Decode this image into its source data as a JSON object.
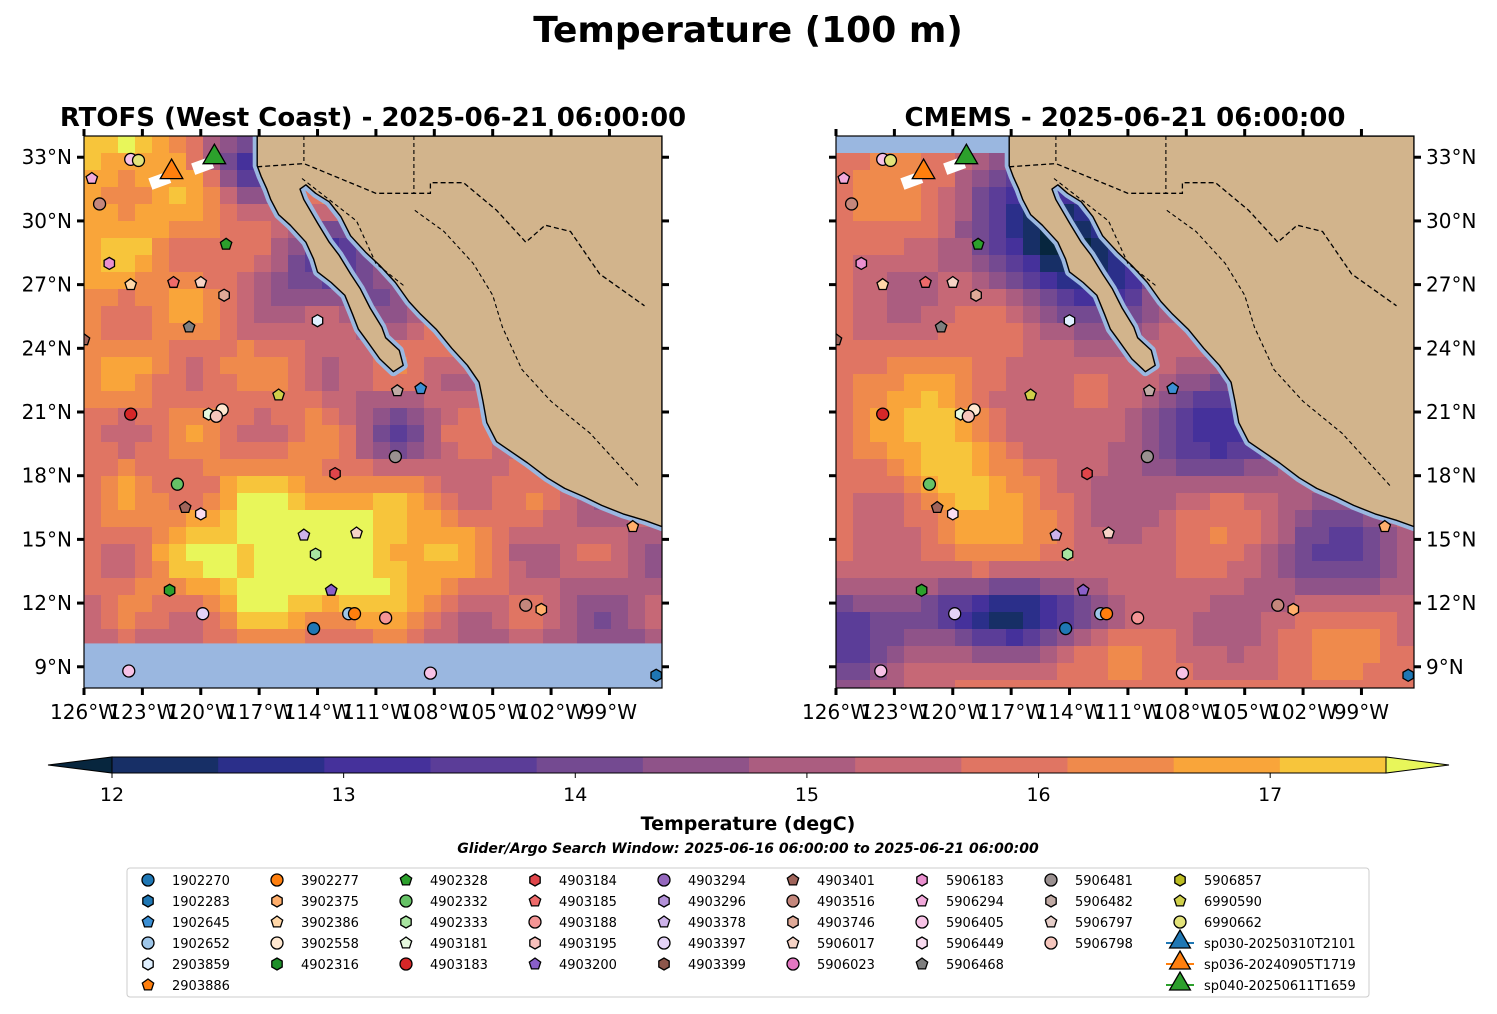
{
  "figure": {
    "title": "Temperature (100 m)",
    "search_window": "Glider/Argo Search Window: 2025-06-16 06:00:00 to 2025-06-21 06:00:00"
  },
  "chart_data": [
    {
      "type": "heatmap",
      "title": "RTOFS (West Coast) - 2025-06-21 06:00:00",
      "model": "RTOFS",
      "lon_range": [
        -126,
        -96.3
      ],
      "lat_range": [
        8,
        34
      ],
      "x_ticks": [
        "126°W",
        "123°W",
        "120°W",
        "117°W",
        "114°W",
        "111°W",
        "108°W",
        "105°W",
        "102°W",
        "99°W"
      ],
      "y_ticks": [
        "9°N",
        "12°N",
        "15°N",
        "18°N",
        "21°N",
        "24°N",
        "27°N",
        "30°N",
        "33°N"
      ],
      "y_tick_side": "left",
      "no_data_below_lat": 10.1
    },
    {
      "type": "heatmap",
      "title": "CMEMS - 2025-06-21 06:00:00",
      "model": "CMEMS",
      "lon_range": [
        -126,
        -96.3
      ],
      "lat_range": [
        8,
        34
      ],
      "x_ticks": [
        "126°W",
        "123°W",
        "120°W",
        "117°W",
        "114°W",
        "111°W",
        "108°W",
        "105°W",
        "102°W",
        "99°W"
      ],
      "y_ticks": [
        "9°N",
        "12°N",
        "15°N",
        "18°N",
        "21°N",
        "24°N",
        "27°N",
        "30°N",
        "33°N"
      ],
      "y_tick_side": "right",
      "no_data_above_lat": 33.2
    }
  ],
  "colorbar": {
    "label": "Temperature (degC)",
    "min": 12,
    "max": 17.5,
    "step": 0.5,
    "ticks": [
      "12",
      "13",
      "14",
      "15",
      "16",
      "17"
    ],
    "extend": "both",
    "colors": [
      "#07263e",
      "#172f66",
      "#2b2f8a",
      "#45319b",
      "#5b3d98",
      "#744a91",
      "#8f5389",
      "#ab5d80",
      "#c66876",
      "#e07563",
      "#ef8a4c",
      "#f9a53a",
      "#f7c53b",
      "#e8f65a"
    ]
  },
  "map_colors": {
    "land": "#d2b48c",
    "no_data": "#9ab7e0",
    "shelf": "#9ab7e0"
  },
  "floats": [
    {
      "id": "1902270",
      "marker": "circle",
      "color": "#1f77b4"
    },
    {
      "id": "1902283",
      "marker": "hexagon",
      "color": "#1f77b4"
    },
    {
      "id": "1902645",
      "marker": "pentagon",
      "color": "#3b8fd4"
    },
    {
      "id": "1902652",
      "marker": "circle",
      "color": "#9ec6e9"
    },
    {
      "id": "2903859",
      "marker": "hexagon",
      "color": "#e0f0ff"
    },
    {
      "id": "2903886",
      "marker": "pentagon",
      "color": "#ff7f0e"
    },
    {
      "id": "3902277",
      "marker": "circle",
      "color": "#ff7f0e"
    },
    {
      "id": "3902375",
      "marker": "hexagon",
      "color": "#ffae6b"
    },
    {
      "id": "3902386",
      "marker": "pentagon",
      "color": "#ffd7a8"
    },
    {
      "id": "3902558",
      "marker": "circle",
      "color": "#ffe8d1"
    },
    {
      "id": "4902316",
      "marker": "hexagon",
      "color": "#1e8f2a"
    },
    {
      "id": "4902328",
      "marker": "pentagon",
      "color": "#2ca02c"
    },
    {
      "id": "4902332",
      "marker": "circle",
      "color": "#66c266"
    },
    {
      "id": "4902333",
      "marker": "hexagon",
      "color": "#a8e4a0"
    },
    {
      "id": "4903181",
      "marker": "pentagon",
      "color": "#e6f9df"
    },
    {
      "id": "4903183",
      "marker": "circle",
      "color": "#d62728"
    },
    {
      "id": "4903184",
      "marker": "hexagon",
      "color": "#e0454a"
    },
    {
      "id": "4903185",
      "marker": "pentagon",
      "color": "#ef6a6a"
    },
    {
      "id": "4903188",
      "marker": "circle",
      "color": "#f49595"
    },
    {
      "id": "4903195",
      "marker": "hexagon",
      "color": "#f8c0bc"
    },
    {
      "id": "4903200",
      "marker": "pentagon",
      "color": "#8a5fc9"
    },
    {
      "id": "4903294",
      "marker": "circle",
      "color": "#9467bd"
    },
    {
      "id": "4903296",
      "marker": "hexagon",
      "color": "#b391d8"
    },
    {
      "id": "4903378",
      "marker": "pentagon",
      "color": "#cdb2ea"
    },
    {
      "id": "4903397",
      "marker": "circle",
      "color": "#e4d2f6"
    },
    {
      "id": "4903399",
      "marker": "hexagon",
      "color": "#8c564b"
    },
    {
      "id": "4903401",
      "marker": "pentagon",
      "color": "#a0645a"
    },
    {
      "id": "4903516",
      "marker": "circle",
      "color": "#c4877c"
    },
    {
      "id": "4903746",
      "marker": "hexagon",
      "color": "#e0aa98"
    },
    {
      "id": "5906017",
      "marker": "pentagon",
      "color": "#f6d3c6"
    },
    {
      "id": "5906023",
      "marker": "circle",
      "color": "#e377c2"
    },
    {
      "id": "5906183",
      "marker": "hexagon",
      "color": "#ea8fcf"
    },
    {
      "id": "5906294",
      "marker": "pentagon",
      "color": "#f2a9db"
    },
    {
      "id": "5906405",
      "marker": "circle",
      "color": "#f7c2e6"
    },
    {
      "id": "5906449",
      "marker": "hexagon",
      "color": "#fadcf1"
    },
    {
      "id": "5906468",
      "marker": "pentagon",
      "color": "#7f7f7f"
    },
    {
      "id": "5906481",
      "marker": "circle",
      "color": "#9a9090"
    },
    {
      "id": "5906482",
      "marker": "hexagon",
      "color": "#c0aaa4"
    },
    {
      "id": "5906797",
      "marker": "pentagon",
      "color": "#e6cec9"
    },
    {
      "id": "5906798",
      "marker": "circle",
      "color": "#f6c6bd"
    },
    {
      "id": "5906857",
      "marker": "hexagon",
      "color": "#bcbd22"
    },
    {
      "id": "6990590",
      "marker": "pentagon",
      "color": "#cfcf4a"
    },
    {
      "id": "6990662",
      "marker": "circle",
      "color": "#e3e37a"
    }
  ],
  "gliders": [
    {
      "id": "sp030-20250310T2101",
      "marker": "triangle",
      "color": "#1f77b4"
    },
    {
      "id": "sp036-20240905T1719",
      "marker": "triangle",
      "color": "#ff7f0e"
    },
    {
      "id": "sp040-20250611T1659",
      "marker": "triangle",
      "color": "#2ca02c"
    }
  ],
  "observations": [
    {
      "lon": -125.6,
      "lat": 32.0,
      "marker": "pentagon",
      "color": "#f2a9db"
    },
    {
      "lon": -123.6,
      "lat": 32.9,
      "marker": "circle",
      "color": "#f7c2e6"
    },
    {
      "lon": -123.2,
      "lat": 32.85,
      "marker": "circle",
      "color": "#e3e37a"
    },
    {
      "lon": -125.2,
      "lat": 30.8,
      "marker": "circle",
      "color": "#c4877c"
    },
    {
      "lon": -124.7,
      "lat": 28.0,
      "marker": "hexagon",
      "color": "#ea8fcf"
    },
    {
      "lon": -123.6,
      "lat": 27.0,
      "marker": "pentagon",
      "color": "#ffd7a8"
    },
    {
      "lon": -121.4,
      "lat": 27.1,
      "marker": "pentagon",
      "color": "#ef6a6a"
    },
    {
      "lon": -120.0,
      "lat": 27.1,
      "marker": "pentagon",
      "color": "#f6d3c6"
    },
    {
      "lon": -118.8,
      "lat": 26.5,
      "marker": "hexagon",
      "color": "#e0aa98"
    },
    {
      "lon": -118.7,
      "lat": 28.9,
      "marker": "pentagon",
      "color": "#2ca02c"
    },
    {
      "lon": -120.6,
      "lat": 25.0,
      "marker": "pentagon",
      "color": "#7f7f7f"
    },
    {
      "lon": -126.0,
      "lat": 24.4,
      "marker": "pentagon",
      "color": "#a0645a"
    },
    {
      "lon": -114.0,
      "lat": 25.3,
      "marker": "hexagon",
      "color": "#e0f0ff"
    },
    {
      "lon": -109.9,
      "lat": 22.0,
      "marker": "pentagon",
      "color": "#c0aaa4"
    },
    {
      "lon": -108.7,
      "lat": 22.1,
      "marker": "pentagon",
      "color": "#3b8fd4"
    },
    {
      "lon": -116.0,
      "lat": 21.8,
      "marker": "pentagon",
      "color": "#cfcf4a"
    },
    {
      "lon": -118.9,
      "lat": 21.1,
      "marker": "circle",
      "color": "#ffe8d1"
    },
    {
      "lon": -119.6,
      "lat": 20.9,
      "marker": "hexagon",
      "color": "#e6f9df"
    },
    {
      "lon": -119.2,
      "lat": 20.8,
      "marker": "circle",
      "color": "#f6c6bd"
    },
    {
      "lon": -123.6,
      "lat": 20.9,
      "marker": "circle",
      "color": "#d62728"
    },
    {
      "lon": -110.0,
      "lat": 18.9,
      "marker": "circle",
      "color": "#9a9090"
    },
    {
      "lon": -113.1,
      "lat": 18.1,
      "marker": "hexagon",
      "color": "#e0454a"
    },
    {
      "lon": -121.2,
      "lat": 17.6,
      "marker": "circle",
      "color": "#66c266"
    },
    {
      "lon": -120.8,
      "lat": 16.5,
      "marker": "pentagon",
      "color": "#a0645a"
    },
    {
      "lon": -120.0,
      "lat": 16.2,
      "marker": "hexagon",
      "color": "#fadcf1"
    },
    {
      "lon": -114.7,
      "lat": 15.2,
      "marker": "pentagon",
      "color": "#cdb2ea"
    },
    {
      "lon": -112.0,
      "lat": 15.3,
      "marker": "pentagon",
      "color": "#f6d3c6"
    },
    {
      "lon": -114.1,
      "lat": 14.3,
      "marker": "hexagon",
      "color": "#a8e4a0"
    },
    {
      "lon": -97.8,
      "lat": 15.6,
      "marker": "pentagon",
      "color": "#ffae6b"
    },
    {
      "lon": -121.6,
      "lat": 12.6,
      "marker": "hexagon",
      "color": "#2ca02c"
    },
    {
      "lon": -113.3,
      "lat": 12.6,
      "marker": "pentagon",
      "color": "#8a5fc9"
    },
    {
      "lon": -119.9,
      "lat": 11.5,
      "marker": "circle",
      "color": "#e4d2f6"
    },
    {
      "lon": -112.4,
      "lat": 11.5,
      "marker": "circle",
      "color": "#9ec6e9"
    },
    {
      "lon": -112.1,
      "lat": 11.5,
      "marker": "circle",
      "color": "#ff7f0e"
    },
    {
      "lon": -110.5,
      "lat": 11.3,
      "marker": "circle",
      "color": "#f49595"
    },
    {
      "lon": -114.2,
      "lat": 10.8,
      "marker": "circle",
      "color": "#1f77b4"
    },
    {
      "lon": -103.3,
      "lat": 11.9,
      "marker": "circle",
      "color": "#c4877c"
    },
    {
      "lon": -102.5,
      "lat": 11.7,
      "marker": "hexagon",
      "color": "#ffae6b"
    },
    {
      "lon": -123.7,
      "lat": 8.8,
      "marker": "circle",
      "color": "#f7c2e6"
    },
    {
      "lon": -108.2,
      "lat": 8.7,
      "marker": "circle",
      "color": "#f7c2e6"
    },
    {
      "lon": -96.6,
      "lat": 8.6,
      "marker": "hexagon",
      "color": "#1f77b4"
    }
  ],
  "glider_positions": [
    {
      "lon": -121.5,
      "lat": 32.3,
      "color": "#ff7f0e"
    },
    {
      "lon": -119.3,
      "lat": 33.0,
      "color": "#2ca02c"
    }
  ]
}
